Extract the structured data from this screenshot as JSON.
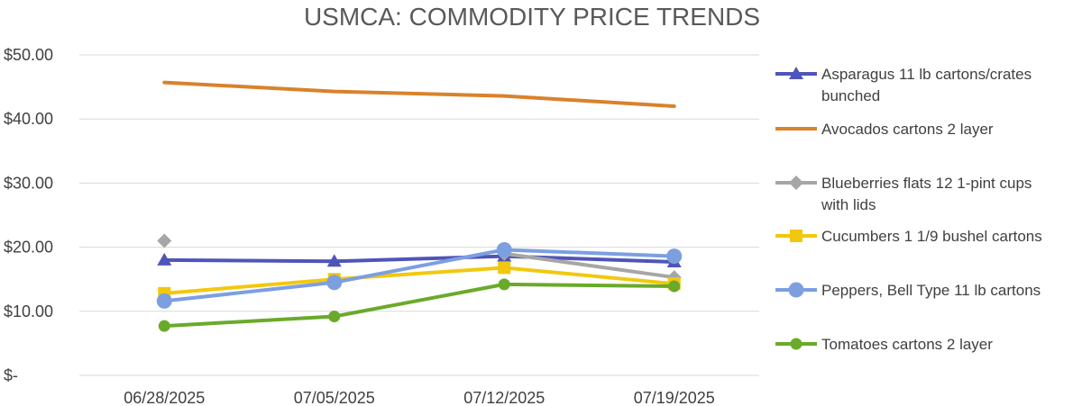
{
  "chart_data": {
    "type": "line",
    "title": "USMCA: COMMODITY PRICE TRENDS",
    "xlabel": "",
    "ylabel": "",
    "categories": [
      "06/28/2025",
      "07/05/2025",
      "07/12/2025",
      "07/19/2025"
    ],
    "ylim": [
      0,
      50
    ],
    "y_ticks": [
      {
        "value": 0,
        "label": "$-"
      },
      {
        "value": 10,
        "label": "$10.00"
      },
      {
        "value": 20,
        "label": "$20.00"
      },
      {
        "value": 30,
        "label": "$30.00"
      },
      {
        "value": 40,
        "label": "$40.00"
      },
      {
        "value": 50,
        "label": "$50.00"
      }
    ],
    "grid": true,
    "legend_position": "right",
    "series": [
      {
        "name": "Asparagus 11 lb cartons/crates bunched",
        "legend_lines": [
          "Asparagus 11 lb cartons/crates",
          "bunched"
        ],
        "color": "#4F55B8",
        "marker": "triangle",
        "values": [
          18.0,
          17.8,
          18.6,
          17.7
        ]
      },
      {
        "name": "Avocados cartons 2 layer",
        "legend_lines": [
          "Avocados cartons 2 layer"
        ],
        "color": "#D9822B",
        "marker": "none",
        "values": [
          45.7,
          44.3,
          43.6,
          42.0
        ]
      },
      {
        "name": "Blueberries flats 12 1-pint cups with lids",
        "legend_lines": [
          "Blueberries flats 12 1-pint cups",
          "with lids"
        ],
        "color": "#A6A6A6",
        "marker": "diamond",
        "values": [
          21.0,
          null,
          19.0,
          15.3
        ]
      },
      {
        "name": "Cucumbers 1 1/9 bushel cartons",
        "legend_lines": [
          "Cucumbers 1 1/9 bushel cartons"
        ],
        "color": "#F2C80F",
        "marker": "square",
        "values": [
          12.8,
          15.0,
          16.8,
          14.3
        ]
      },
      {
        "name": "Peppers, Bell Type 11 lb cartons",
        "legend_lines": [
          "Peppers, Bell Type 11 lb cartons"
        ],
        "color": "#7C9FE0",
        "marker": "circle",
        "values": [
          11.6,
          14.5,
          19.6,
          18.6
        ]
      },
      {
        "name": "Tomatoes cartons 2 layer",
        "legend_lines": [
          "Tomatoes cartons 2 layer"
        ],
        "color": "#6AAA2A",
        "marker": "circle-small",
        "values": [
          7.7,
          9.2,
          14.2,
          13.9
        ]
      }
    ]
  }
}
